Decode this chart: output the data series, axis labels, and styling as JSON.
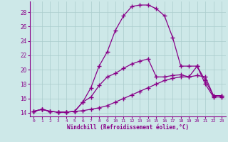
{
  "xlabel": "Windchill (Refroidissement éolien,°C)",
  "xlim": [
    -0.5,
    23.5
  ],
  "ylim": [
    13.5,
    29.5
  ],
  "xticks": [
    0,
    1,
    2,
    3,
    4,
    5,
    6,
    7,
    8,
    9,
    10,
    11,
    12,
    13,
    14,
    15,
    16,
    17,
    18,
    19,
    20,
    21,
    22,
    23
  ],
  "yticks": [
    14,
    16,
    18,
    20,
    22,
    24,
    26,
    28
  ],
  "bg_color": "#cde8e8",
  "line_color": "#880088",
  "grid_color": "#aacccc",
  "curve_high_x": [
    0,
    1,
    2,
    3,
    4,
    5,
    6,
    7,
    8,
    9,
    10,
    11,
    12,
    13,
    14,
    15,
    16,
    17,
    18,
    19,
    20,
    21,
    22,
    23
  ],
  "curve_high_y": [
    14.2,
    14.5,
    14.2,
    14.1,
    14.1,
    14.2,
    15.5,
    17.5,
    20.5,
    22.5,
    25.5,
    27.5,
    28.8,
    29.0,
    29.0,
    28.5,
    27.5,
    24.5,
    20.5,
    20.5,
    20.5,
    18.0,
    16.2,
    16.2
  ],
  "curve_mid_x": [
    0,
    1,
    2,
    3,
    4,
    5,
    6,
    7,
    8,
    9,
    10,
    11,
    12,
    13,
    14,
    15,
    16,
    17,
    18,
    19,
    20,
    21,
    22,
    23
  ],
  "curve_mid_y": [
    14.2,
    14.5,
    14.2,
    14.1,
    14.1,
    14.2,
    15.5,
    16.2,
    17.8,
    19.0,
    19.5,
    20.2,
    20.8,
    21.2,
    21.5,
    19.0,
    19.0,
    19.2,
    19.3,
    19.0,
    20.5,
    18.5,
    16.4,
    16.4
  ],
  "curve_low_x": [
    0,
    1,
    2,
    3,
    4,
    5,
    6,
    7,
    8,
    9,
    10,
    11,
    12,
    13,
    14,
    15,
    16,
    17,
    18,
    19,
    20,
    21,
    22,
    23
  ],
  "curve_low_y": [
    14.2,
    14.5,
    14.2,
    14.1,
    14.1,
    14.2,
    14.3,
    14.5,
    14.7,
    15.0,
    15.5,
    16.0,
    16.5,
    17.0,
    17.5,
    18.0,
    18.5,
    18.8,
    19.0,
    19.0,
    19.2,
    19.0,
    16.4,
    16.4
  ]
}
